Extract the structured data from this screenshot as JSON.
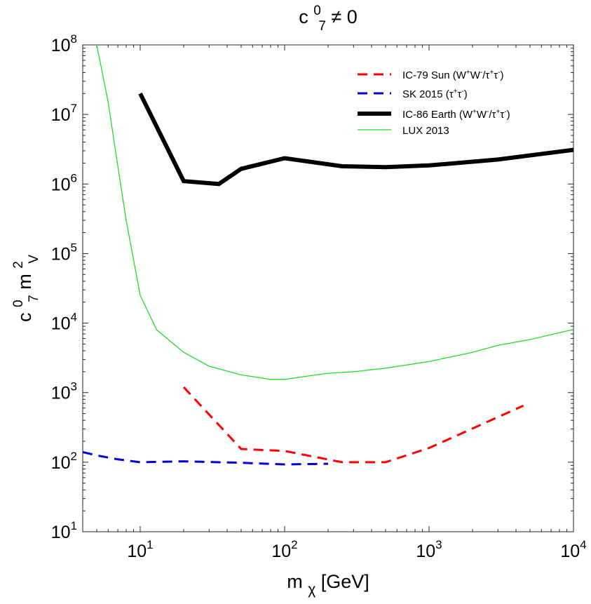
{
  "chart_data": {
    "type": "line",
    "title": {
      "base": "c",
      "sup": "0",
      "sub": "7",
      "rest": " ≠ 0"
    },
    "xlabel": {
      "base": "m",
      "sub": "χ",
      "rest": "  [GeV]"
    },
    "ylabel": {
      "c": "c",
      "c_sup": "0",
      "c_sub": "7",
      "m": " m",
      "m_sup": "2",
      "m_sub": "V"
    },
    "xscale": "log",
    "yscale": "log",
    "xlim": [
      4,
      10000
    ],
    "ylim": [
      10,
      100000000
    ],
    "grid": false,
    "legend_position": "top-right",
    "x_ticks": [
      {
        "value": 10,
        "base": "10",
        "exp": "1"
      },
      {
        "value": 100,
        "base": "10",
        "exp": "2"
      },
      {
        "value": 1000,
        "base": "10",
        "exp": "3"
      },
      {
        "value": 10000,
        "base": "10",
        "exp": "4"
      }
    ],
    "y_ticks": [
      {
        "value": 10,
        "base": "10",
        "exp": "1"
      },
      {
        "value": 100,
        "base": "10",
        "exp": "2"
      },
      {
        "value": 1000,
        "base": "10",
        "exp": "3"
      },
      {
        "value": 10000,
        "base": "10",
        "exp": "4"
      },
      {
        "value": 100000,
        "base": "10",
        "exp": "5"
      },
      {
        "value": 1000000,
        "base": "10",
        "exp": "6"
      },
      {
        "value": 10000000,
        "base": "10",
        "exp": "7"
      },
      {
        "value": 100000000,
        "base": "10",
        "exp": "8"
      }
    ],
    "series": [
      {
        "name": "IC-79 Sun (W⁺W⁻/τ⁺τ⁻)",
        "legend": {
          "pre": "IC-79 Sun (W",
          "s1": "+",
          "mid1": "W",
          "s2": "-",
          "mid2": "/τ",
          "s3": "+",
          "mid3": "τ",
          "s4": "-",
          "post": ")"
        },
        "color": "#ff0000",
        "style": "dashed",
        "width": "medium",
        "x": [
          20,
          50,
          100,
          250,
          500,
          1000,
          4500
        ],
        "y": [
          1200,
          155,
          145,
          100,
          100,
          160,
          650
        ]
      },
      {
        "name": "SK 2015 (τ⁺τ⁻)",
        "legend": {
          "pre": "SK 2015 (τ",
          "s1": "+",
          "mid1": "τ",
          "s2": "-",
          "post": ")"
        },
        "color": "#0000dd",
        "style": "dashed",
        "width": "medium",
        "x": [
          4,
          5,
          7,
          10,
          20,
          50,
          100,
          200
        ],
        "y": [
          140,
          125,
          110,
          100,
          103,
          98,
          93,
          95
        ]
      },
      {
        "name": "IC-86 Earth (W⁺W⁻/τ⁺τ⁻)",
        "legend": {
          "pre": "IC-86 Earth (W",
          "s1": "+",
          "mid1": "W",
          "s2": "-",
          "mid2": "/τ",
          "s3": "+",
          "mid3": "τ",
          "s4": "-",
          "post": ")"
        },
        "color": "#000000",
        "style": "solid",
        "width": "thick",
        "x": [
          10,
          20,
          35,
          50,
          100,
          250,
          500,
          1000,
          3000,
          10000
        ],
        "y": [
          20000000,
          1100000,
          1000000,
          1650000,
          2350000,
          1800000,
          1750000,
          1850000,
          2250000,
          3100000
        ]
      },
      {
        "name": "LUX 2013",
        "legend": {
          "pre": "LUX 2013"
        },
        "color": "#22dd22",
        "style": "solid",
        "width": "thin",
        "x": [
          5,
          6,
          7,
          8,
          10,
          13,
          20,
          30,
          50,
          80,
          100,
          150,
          200,
          300,
          500,
          1000,
          2000,
          3000,
          5000,
          10000
        ],
        "y": [
          100000000,
          15000000,
          1800000,
          300000,
          25000,
          8000,
          3800,
          2400,
          1800,
          1550,
          1550,
          1750,
          1900,
          2000,
          2250,
          2800,
          3800,
          4800,
          5800,
          8100
        ]
      }
    ]
  }
}
